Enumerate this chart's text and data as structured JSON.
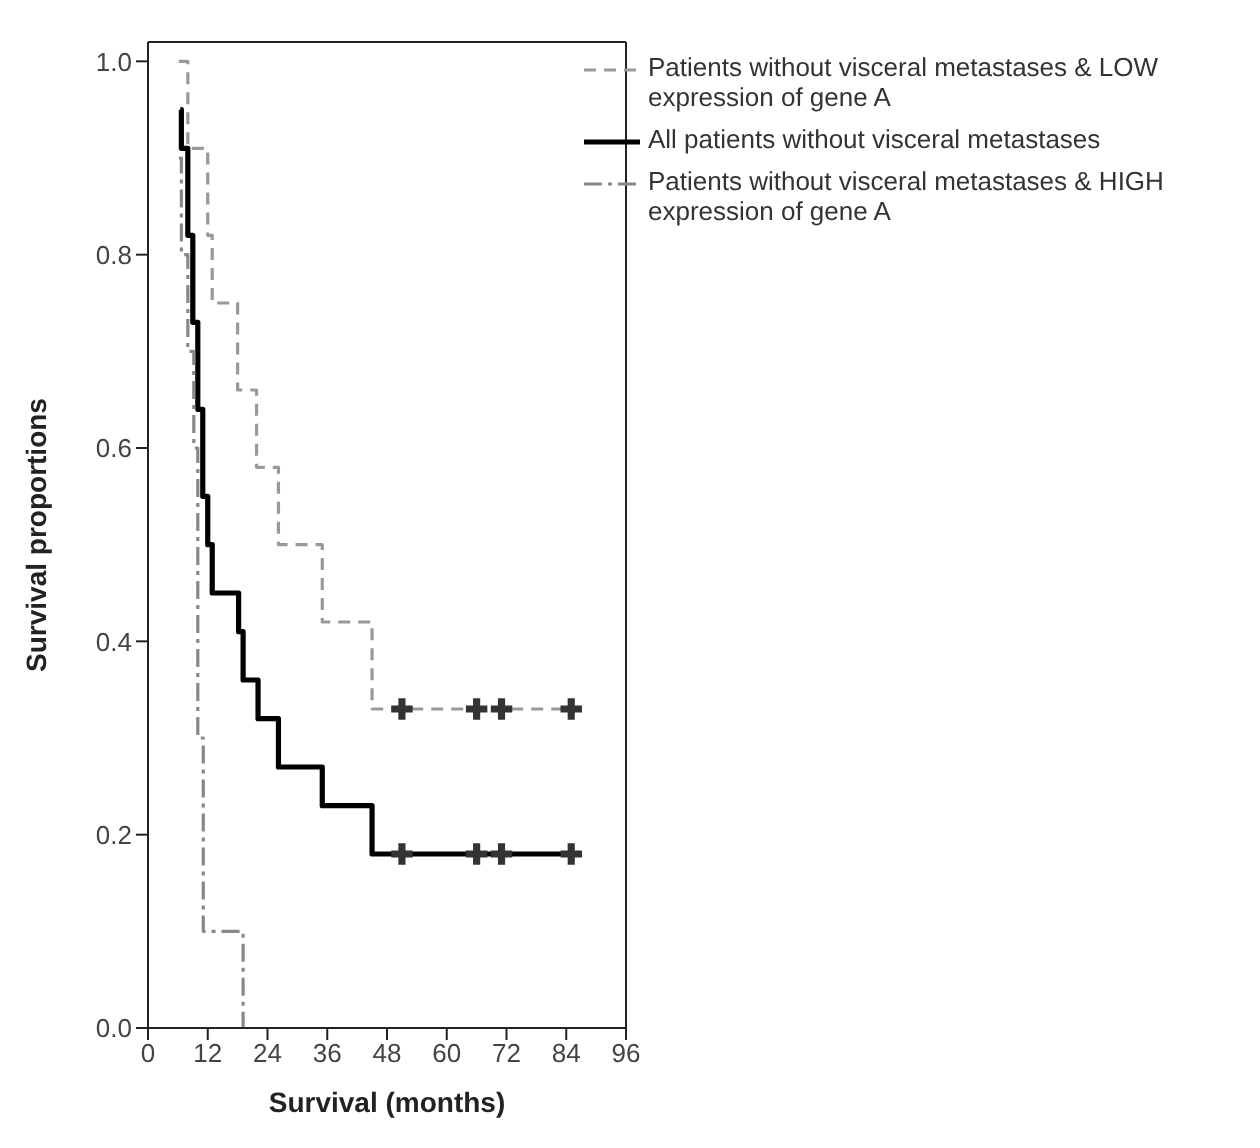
{
  "chart_data": {
    "type": "step",
    "xlabel": "Survival (months)",
    "ylabel": "Survival proportions",
    "xlim": [
      0,
      96
    ],
    "xticks": [
      0,
      12,
      24,
      36,
      48,
      60,
      72,
      84,
      96
    ],
    "ylim": [
      0,
      1.02
    ],
    "yticks": [
      {
        "value": 0,
        "label": "0.0"
      },
      {
        "value": 0.2,
        "label": "0.2"
      },
      {
        "value": 0.4,
        "label": "0.4"
      },
      {
        "value": 0.6,
        "label": "0.6"
      },
      {
        "value": 0.8,
        "label": "0.8"
      },
      {
        "value": 1,
        "label": "1.0"
      }
    ],
    "grid": false,
    "legend": "top right",
    "marker": "none",
    "series": [
      {
        "name": "Patients without visceral metastases & LOW expression of gene A",
        "color": "#999999",
        "line_style": "dashed",
        "x": [
          6.2,
          8,
          12,
          12.9,
          18,
          21.8,
          26.2,
          35,
          45,
          85
        ],
        "values": [
          1.0,
          0.91,
          0.82,
          0.75,
          0.66,
          0.58,
          0.5,
          0.42,
          0.33,
          0.33
        ]
      },
      {
        "name": "All patients without visceral metastases",
        "color": "#000000",
        "line_style": "solid",
        "x": [
          6.5,
          6.7,
          8,
          9,
          10,
          11,
          12,
          12.9,
          18.2,
          19.1,
          22.1,
          26.2,
          35,
          45,
          85
        ],
        "values": [
          0.95,
          0.91,
          0.82,
          0.73,
          0.64,
          0.55,
          0.5,
          0.45,
          0.41,
          0.36,
          0.32,
          0.27,
          0.23,
          0.18,
          0.18
        ]
      },
      {
        "name": "Patients without visceral metastases & HIGH expression of gene A",
        "color": "#888888",
        "line_style": "dashdot",
        "x": [
          6.2,
          6.7,
          8,
          9.2,
          10,
          11.1,
          19.1
        ],
        "values": [
          0.9,
          0.8,
          0.7,
          0.6,
          0.3,
          0.1,
          0.0
        ]
      },
      {
        "type": "scatter",
        "marker": "cross",
        "color": "#333333",
        "x": [
          51,
          66,
          71,
          85
        ],
        "values": [
          0.33,
          0.33,
          0.33,
          0.33
        ]
      },
      {
        "type": "scatter",
        "marker": "cross",
        "color": "#333333",
        "x": [
          51,
          66,
          71,
          85
        ],
        "values": [
          0.18,
          0.18,
          0.18,
          0.18
        ]
      }
    ]
  }
}
